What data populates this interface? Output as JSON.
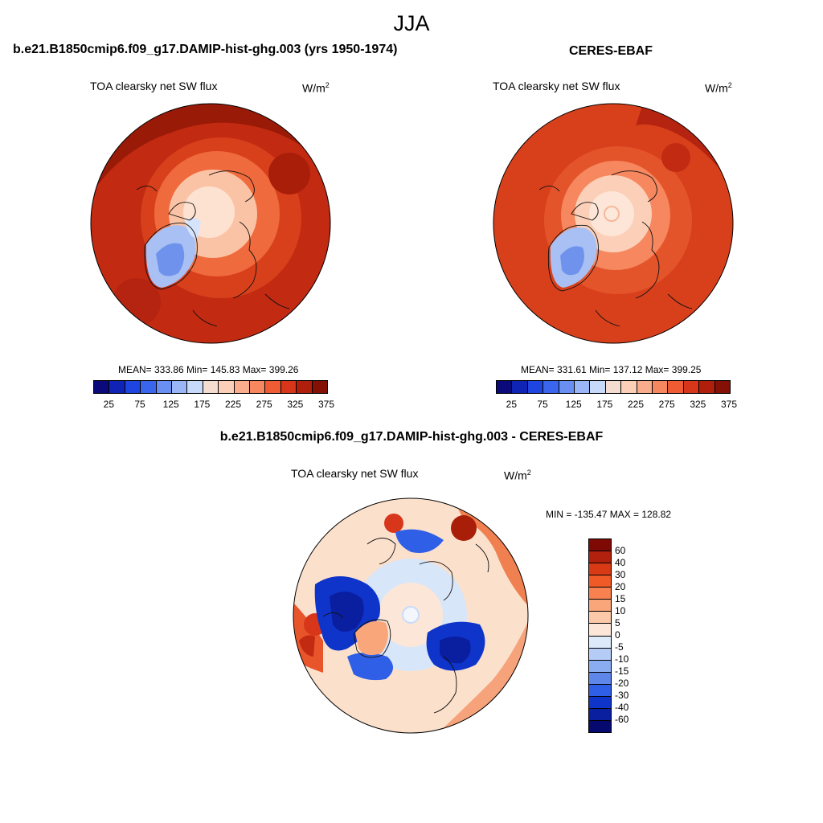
{
  "season": "JJA",
  "left_panel": {
    "title": "b.e21.B1850cmip6.f09_g17.DAMIP-hist-ghg.003 (yrs 1950-1974)",
    "variable": "TOA clearsky net SW flux",
    "units_base": "W/m",
    "units_exp": "2",
    "stats": "MEAN= 333.86  Min= 145.83  Max= 399.26"
  },
  "right_panel": {
    "title": "CERES-EBAF",
    "variable": "TOA clearsky net SW flux",
    "units_base": "W/m",
    "units_exp": "2",
    "stats": "MEAN= 331.61  Min= 137.12  Max= 399.25"
  },
  "diff_panel": {
    "title": "b.e21.B1850cmip6.f09_g17.DAMIP-hist-ghg.003 - CERES-EBAF",
    "variable": "TOA clearsky net SW flux",
    "units_base": "W/m",
    "units_exp": "2",
    "minmax": "MIN = -135.47 MAX = 128.82"
  },
  "chart_data": [
    {
      "type": "heatmap",
      "projection": "north-polar-stereographic",
      "title": "b.e21.B1850cmip6.f09_g17.DAMIP-hist-ghg.003 (yrs 1950-1974)",
      "variable": "TOA clearsky net SW flux",
      "units": "W/m2",
      "mean": 333.86,
      "min": 145.83,
      "max": 399.26,
      "colorbar_ticks": [
        "25",
        "75",
        "125",
        "175",
        "225",
        "275",
        "325",
        "375"
      ],
      "colorbar_colors": [
        "#0a0a7a",
        "#0f24b4",
        "#1f45e0",
        "#3a66ee",
        "#6a8ff2",
        "#9ab6f6",
        "#c8dafa",
        "#f4dcd0",
        "#fcd0b8",
        "#f9ad8c",
        "#f6875f",
        "#ef5b33",
        "#d8361a",
        "#b01f0c",
        "#841006"
      ]
    },
    {
      "type": "heatmap",
      "projection": "north-polar-stereographic",
      "title": "CERES-EBAF",
      "variable": "TOA clearsky net SW flux",
      "units": "W/m2",
      "mean": 331.61,
      "min": 137.12,
      "max": 399.25,
      "colorbar_ticks": [
        "25",
        "75",
        "125",
        "175",
        "225",
        "275",
        "325",
        "375"
      ],
      "colorbar_colors": [
        "#0a0a7a",
        "#0f24b4",
        "#1f45e0",
        "#3a66ee",
        "#6a8ff2",
        "#9ab6f6",
        "#c8dafa",
        "#f4dcd0",
        "#fcd0b8",
        "#f9ad8c",
        "#f6875f",
        "#ef5b33",
        "#d8361a",
        "#b01f0c",
        "#841006"
      ]
    },
    {
      "type": "heatmap",
      "projection": "north-polar-stereographic",
      "title": "b.e21.B1850cmip6.f09_g17.DAMIP-hist-ghg.003 - CERES-EBAF",
      "variable": "TOA clearsky net SW flux",
      "units": "W/m2",
      "min": -135.47,
      "max": 128.82,
      "colorbar_ticks": [
        "60",
        "40",
        "30",
        "20",
        "15",
        "10",
        "5",
        "0",
        "-5",
        "-10",
        "-15",
        "-20",
        "-30",
        "-40",
        "-60"
      ],
      "colorbar_colors": [
        "#7f0a05",
        "#b1210d",
        "#d83a16",
        "#f05a27",
        "#f7814f",
        "#f9a67a",
        "#fbc9aa",
        "#fbe6d8",
        "#dceafa",
        "#b5cdf6",
        "#8aacf0",
        "#5f87ea",
        "#2f5fe6",
        "#0f34c9",
        "#0a1ea0",
        "#060a6e"
      ]
    }
  ]
}
